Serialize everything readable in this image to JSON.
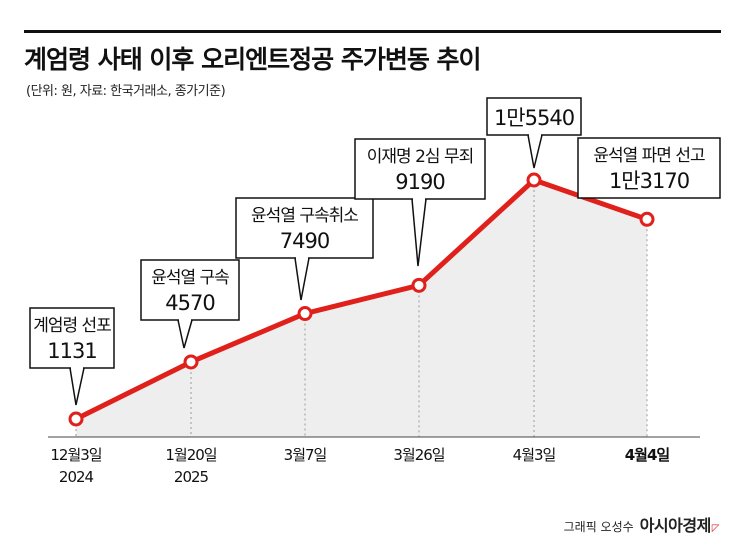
{
  "header": {
    "title": "계엄령 사태 이후 오리엔트정공 주가변동 추이",
    "subtitle": "(단위: 원, 자료: 한국거래소, 종가기준)"
  },
  "footer": {
    "credit": "그래픽 오성수",
    "brand": "아시아경제"
  },
  "colors": {
    "line": "#e0201b",
    "area": "#eeeeee",
    "text": "#111111",
    "guide": "#9a9a9a"
  },
  "chart_data": {
    "type": "line",
    "title": "계엄령 사태 이후 오리엔트정공 주가변동 추이",
    "xlabel": "",
    "ylabel": "",
    "ylim": [
      0,
      16000
    ],
    "grid": false,
    "points": [
      {
        "x_label": "12월3일",
        "x_sub": "2024",
        "value": 1131,
        "value_label": "1131",
        "event": "계엄령 선포",
        "bold_x": false
      },
      {
        "x_label": "1월20일",
        "x_sub": "2025",
        "value": 4570,
        "value_label": "4570",
        "event": "윤석열 구속",
        "bold_x": false
      },
      {
        "x_label": "3월7일",
        "x_sub": "",
        "value": 7490,
        "value_label": "7490",
        "event": "윤석열 구속취소",
        "bold_x": false
      },
      {
        "x_label": "3월26일",
        "x_sub": "",
        "value": 9190,
        "value_label": "9190",
        "event": "이재명 2심 무죄",
        "bold_x": false
      },
      {
        "x_label": "4월3일",
        "x_sub": "",
        "value": 15540,
        "value_label": "1만5540",
        "event": "",
        "bold_x": false
      },
      {
        "x_label": "4월4일",
        "x_sub": "",
        "value": 13170,
        "value_label": "1만3170",
        "event": "윤석열 파면 선고",
        "bold_x": true
      }
    ]
  }
}
